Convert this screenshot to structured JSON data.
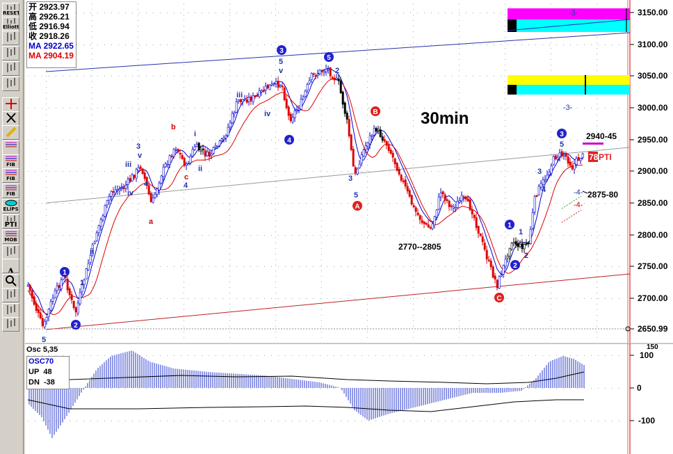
{
  "toolbar": {
    "items": [
      {
        "icon": "reset-icon",
        "label": "RESET"
      },
      {
        "icon": "elliott-icon",
        "label": "Elliott"
      },
      {
        "icon": "bar-chart-icon",
        "label": ""
      },
      {
        "icon": "ohlc-icon",
        "label": ""
      },
      {
        "icon": "compare-icon",
        "label": ""
      },
      {
        "icon": "scale-icon",
        "label": ""
      },
      {
        "icon": "crosshair-icon",
        "label": ""
      },
      {
        "icon": "delete-icon",
        "label": ""
      },
      {
        "icon": "pencil-icon",
        "label": ""
      },
      {
        "icon": "parallel-lines-icon",
        "label": ""
      },
      {
        "icon": "fib-ret-icon",
        "label": "FIB RET"
      },
      {
        "icon": "fib-ext-icon",
        "label": "FIB EXT"
      },
      {
        "icon": "fib-time-icon",
        "label": "FIB TIME"
      },
      {
        "icon": "ellipse-icon",
        "label": "ELIPS"
      },
      {
        "icon": "pti-icon",
        "label": "PTI"
      },
      {
        "icon": "mob-icon",
        "label": "MOB"
      },
      {
        "icon": "gann-icon",
        "label": ""
      },
      {
        "icon": "text-icon",
        "label": "A"
      },
      {
        "icon": "zoom-icon",
        "label": ""
      },
      {
        "icon": "eraser-icon",
        "label": ""
      },
      {
        "icon": "grid-icon",
        "label": ""
      },
      {
        "icon": "table-icon",
        "label": ""
      }
    ]
  },
  "quote": {
    "open_label": "开",
    "open": "2923.97",
    "high_label": "高",
    "high": "2926.21",
    "low_label": "低",
    "low": "2916.94",
    "close_label": "收",
    "close": "2918.26",
    "ma1_label": "MA",
    "ma1": "2922.65",
    "ma2_label": "MA",
    "ma2": "2904.19"
  },
  "chart_title": "30min",
  "annotations": {
    "target_high": "2940-45",
    "target_low": "2875-80",
    "support_zone": "2770--2805",
    "pti_value": "78",
    "pti_label": "PTI",
    "minus3": "-3-",
    "minus4": "-4-",
    "last_price": "2650.99"
  },
  "wave_labels": {
    "w1": "1",
    "w2": "2",
    "w3": "3",
    "w4": "4",
    "w5": "5",
    "A": "A",
    "B": "B",
    "C": "C",
    "i": "i",
    "ii": "ii",
    "iii": "iii",
    "iv": "iv",
    "v": "v",
    "a": "a",
    "b": "b",
    "c": "c"
  },
  "price_axis": {
    "ticks": [
      "3150.00",
      "3100.00",
      "3050.00",
      "3000.00",
      "2950.00",
      "2900.00",
      "2850.00",
      "2800.00",
      "2750.00",
      "2700.00",
      "2650.99"
    ]
  },
  "osc": {
    "title": "Osc 5,35",
    "name": "OSC70",
    "up_label": "UP",
    "up": "48",
    "dn_label": "DN",
    "dn": "-38",
    "ticks": [
      "100",
      "0",
      "-100"
    ],
    "top_tick": "150"
  },
  "colors": {
    "up": "#0000cc",
    "down": "#dd0000",
    "ma1": "#0000cc",
    "ma2": "#dd0000",
    "magenta": "#ff00ff",
    "cyan": "#00ffff",
    "yellow": "#ffff00"
  }
}
